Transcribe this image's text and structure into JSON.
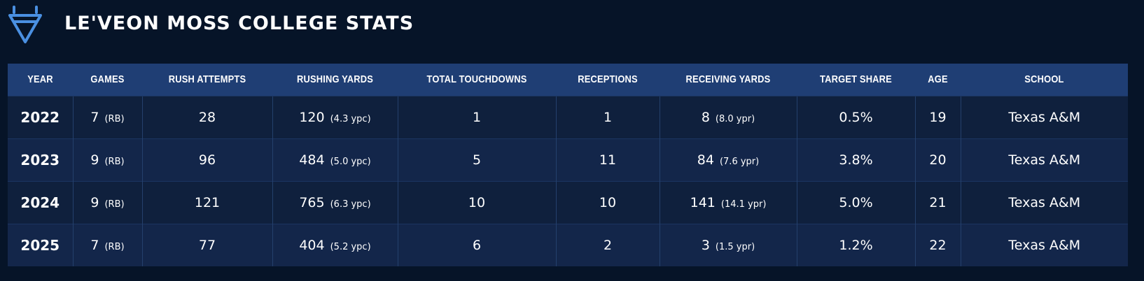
{
  "header": {
    "title": "LE'VEON MOSS COLLEGE STATS",
    "logo_icon": "downward-triangle-logo-icon",
    "accent_color": "#4a90e2"
  },
  "table": {
    "columns": [
      "YEAR",
      "GAMES",
      "RUSH ATTEMPTS",
      "RUSHING YARDS",
      "TOTAL TOUCHDOWNS",
      "RECEPTIONS",
      "RECEIVING YARDS",
      "TARGET SHARE",
      "AGE",
      "SCHOOL"
    ],
    "rows": [
      {
        "year": "2022",
        "games": "7",
        "games_pos": "(RB)",
        "rush_attempts": "28",
        "rushing_yards": "120",
        "ypc": "(4.3 ypc)",
        "total_touchdowns": "1",
        "receptions": "1",
        "receiving_yards": "8",
        "ypr": "(8.0 ypr)",
        "target_share": "0.5%",
        "age": "19",
        "school": "Texas A&M"
      },
      {
        "year": "2023",
        "games": "9",
        "games_pos": "(RB)",
        "rush_attempts": "96",
        "rushing_yards": "484",
        "ypc": "(5.0 ypc)",
        "total_touchdowns": "5",
        "receptions": "11",
        "receiving_yards": "84",
        "ypr": "(7.6 ypr)",
        "target_share": "3.8%",
        "age": "20",
        "school": "Texas A&M"
      },
      {
        "year": "2024",
        "games": "9",
        "games_pos": "(RB)",
        "rush_attempts": "121",
        "rushing_yards": "765",
        "ypc": "(6.3 ypc)",
        "total_touchdowns": "10",
        "receptions": "10",
        "receiving_yards": "141",
        "ypr": "(14.1 ypr)",
        "target_share": "5.0%",
        "age": "21",
        "school": "Texas A&M"
      },
      {
        "year": "2025",
        "games": "7",
        "games_pos": "(RB)",
        "rush_attempts": "77",
        "rushing_yards": "404",
        "ypc": "(5.2 ypc)",
        "total_touchdowns": "6",
        "receptions": "2",
        "receiving_yards": "3",
        "ypr": "(1.5 ypr)",
        "target_share": "1.2%",
        "age": "22",
        "school": "Texas A&M"
      }
    ]
  }
}
